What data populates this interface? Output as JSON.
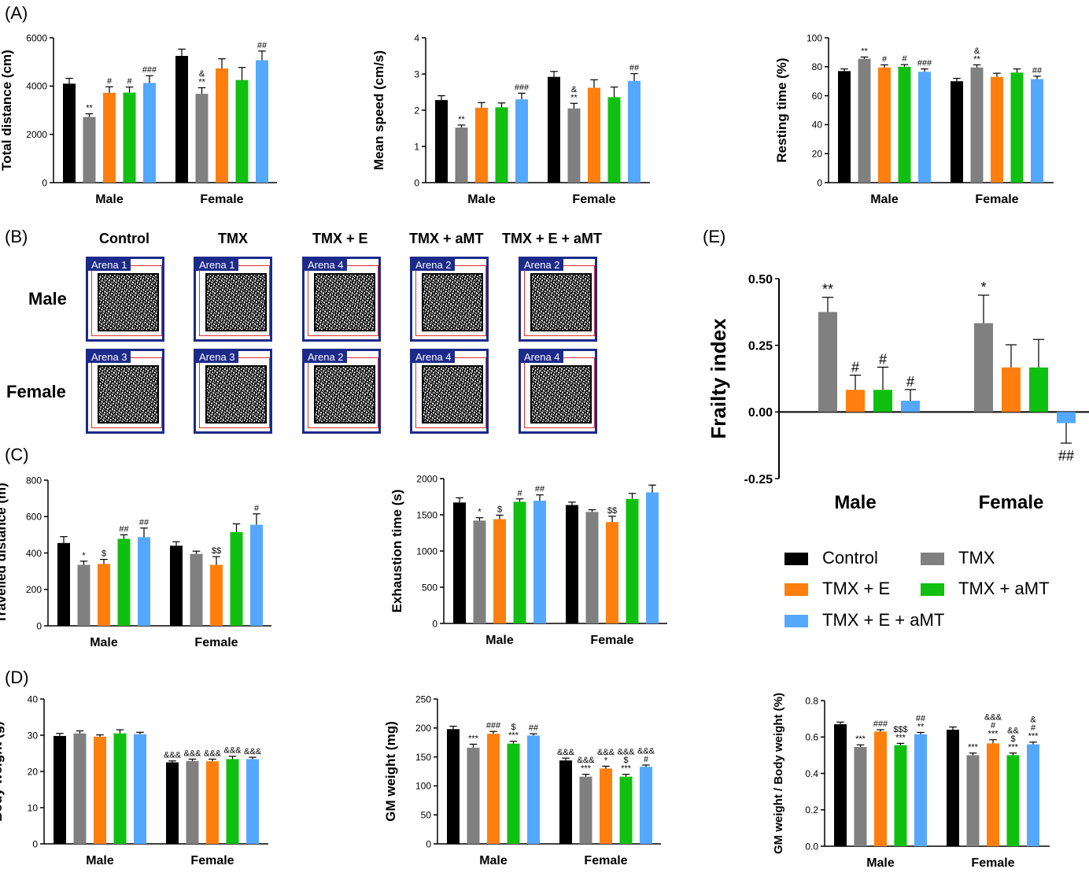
{
  "panel_labels": [
    "(A)",
    "(B)",
    "(C)",
    "(D)",
    "(E)"
  ],
  "colors": {
    "Control": "#000000",
    "TMX": "#808080",
    "TMX + E": "#ff7f0e",
    "TMX + aMT": "#10c010",
    "TMX + E + aMT": "#55a8ff"
  },
  "tracking": {
    "columns": [
      "Control",
      "TMX",
      "TMX + E",
      "TMX + aMT",
      "TMX + E + aMT"
    ],
    "rows": [
      "Male",
      "Female"
    ],
    "arena_labels": [
      [
        "Arena 1",
        "Arena 1",
        "Arena 4",
        "Arena 2",
        "Arena 2"
      ],
      [
        "Arena 3",
        "Arena 3",
        "Arena 2",
        "Arena 4",
        "Arena 4"
      ]
    ]
  },
  "legend": {
    "items": [
      "Control",
      "TMX",
      "TMX + E",
      "TMX + aMT",
      "TMX + E + aMT"
    ]
  },
  "chart_data": [
    {
      "id": "total-distance",
      "type": "bar",
      "ylabel": "Total distance (cm)",
      "ylim": [
        0,
        6000
      ],
      "yticks": [
        0,
        2000,
        4000,
        6000
      ],
      "categories": [
        "Male",
        "Female"
      ],
      "series": [
        {
          "name": "Control",
          "values": [
            4100,
            5250
          ],
          "errors": [
            220,
            280
          ],
          "annotations": [
            "",
            ""
          ]
        },
        {
          "name": "TMX",
          "values": [
            2720,
            3680
          ],
          "errors": [
            130,
            250
          ],
          "annotations": [
            "**",
            "&\n**"
          ]
        },
        {
          "name": "TMX + E",
          "values": [
            3720,
            4730
          ],
          "errors": [
            250,
            400
          ],
          "annotations": [
            "#",
            ""
          ]
        },
        {
          "name": "TMX + aMT",
          "values": [
            3730,
            4250
          ],
          "errors": [
            230,
            520
          ],
          "annotations": [
            "#",
            ""
          ]
        },
        {
          "name": "TMX + E + aMT",
          "values": [
            4130,
            5070
          ],
          "errors": [
            300,
            380
          ],
          "annotations": [
            "###",
            "##"
          ]
        }
      ]
    },
    {
      "id": "mean-speed",
      "type": "bar",
      "ylabel": "Mean speed (cm/s)",
      "ylim": [
        0,
        4
      ],
      "yticks": [
        0,
        1,
        2,
        3,
        4
      ],
      "categories": [
        "Male",
        "Female"
      ],
      "series": [
        {
          "name": "Control",
          "values": [
            2.28,
            2.92
          ],
          "errors": [
            0.12,
            0.15
          ],
          "annotations": [
            "",
            ""
          ]
        },
        {
          "name": "TMX",
          "values": [
            1.52,
            2.05
          ],
          "errors": [
            0.07,
            0.14
          ],
          "annotations": [
            "**",
            "&\n**"
          ]
        },
        {
          "name": "TMX + E",
          "values": [
            2.07,
            2.62
          ],
          "errors": [
            0.14,
            0.22
          ],
          "annotations": [
            "",
            ""
          ]
        },
        {
          "name": "TMX + aMT",
          "values": [
            2.08,
            2.36
          ],
          "errors": [
            0.12,
            0.28
          ],
          "annotations": [
            "",
            ""
          ]
        },
        {
          "name": "TMX + E + aMT",
          "values": [
            2.3,
            2.81
          ],
          "errors": [
            0.17,
            0.2
          ],
          "annotations": [
            "###",
            "##"
          ]
        }
      ]
    },
    {
      "id": "resting-time",
      "type": "bar",
      "ylabel": "Resting time (%)",
      "ylim": [
        0,
        100
      ],
      "yticks": [
        0,
        20,
        40,
        60,
        80,
        100
      ],
      "categories": [
        "Male",
        "Female"
      ],
      "series": [
        {
          "name": "Control",
          "values": [
            77,
            70
          ],
          "errors": [
            1.5,
            2
          ],
          "annotations": [
            "",
            ""
          ]
        },
        {
          "name": "TMX",
          "values": [
            85.5,
            79.5
          ],
          "errors": [
            1.2,
            1.8
          ],
          "annotations": [
            "**",
            "&\n**"
          ]
        },
        {
          "name": "TMX + E",
          "values": [
            79.5,
            73
          ],
          "errors": [
            1.8,
            2.5
          ],
          "annotations": [
            "#",
            ""
          ]
        },
        {
          "name": "TMX + aMT",
          "values": [
            80,
            76
          ],
          "errors": [
            1.5,
            2.5
          ],
          "annotations": [
            "#",
            ""
          ]
        },
        {
          "name": "TMX + E + aMT",
          "values": [
            76.5,
            71.5
          ],
          "errors": [
            2,
            2
          ],
          "annotations": [
            "###",
            "##"
          ]
        }
      ]
    },
    {
      "id": "travelled-distance",
      "type": "bar",
      "ylabel": "Travelled distance (m)",
      "ylim": [
        0,
        800
      ],
      "yticks": [
        0,
        200,
        400,
        600,
        800
      ],
      "categories": [
        "Male",
        "Female"
      ],
      "series": [
        {
          "name": "Control",
          "values": [
            455,
            440
          ],
          "errors": [
            35,
            22
          ],
          "annotations": [
            "",
            ""
          ]
        },
        {
          "name": "TMX",
          "values": [
            335,
            395
          ],
          "errors": [
            20,
            15
          ],
          "annotations": [
            "*",
            ""
          ]
        },
        {
          "name": "TMX + E",
          "values": [
            340,
            335
          ],
          "errors": [
            25,
            45
          ],
          "annotations": [
            "$",
            "$$"
          ]
        },
        {
          "name": "TMX + aMT",
          "values": [
            478,
            515
          ],
          "errors": [
            22,
            45
          ],
          "annotations": [
            "##",
            ""
          ]
        },
        {
          "name": "TMX + E + aMT",
          "values": [
            487,
            555
          ],
          "errors": [
            50,
            60
          ],
          "annotations": [
            "##",
            "#"
          ]
        }
      ]
    },
    {
      "id": "exhaustion-time",
      "type": "bar",
      "ylabel": "Exhaustion time (s)",
      "ylim": [
        0,
        2000
      ],
      "yticks": [
        0,
        500,
        1000,
        1500,
        2000
      ],
      "categories": [
        "Male",
        "Female"
      ],
      "series": [
        {
          "name": "Control",
          "values": [
            1670,
            1635
          ],
          "errors": [
            65,
            40
          ],
          "annotations": [
            "",
            ""
          ]
        },
        {
          "name": "TMX",
          "values": [
            1420,
            1540
          ],
          "errors": [
            40,
            30
          ],
          "annotations": [
            "*",
            ""
          ]
        },
        {
          "name": "TMX + E",
          "values": [
            1440,
            1400
          ],
          "errors": [
            55,
            80
          ],
          "annotations": [
            "$",
            "$$"
          ]
        },
        {
          "name": "TMX + aMT",
          "values": [
            1680,
            1720
          ],
          "errors": [
            40,
            75
          ],
          "annotations": [
            "#",
            ""
          ]
        },
        {
          "name": "TMX + E + aMT",
          "values": [
            1695,
            1810
          ],
          "errors": [
            80,
            100
          ],
          "annotations": [
            "##",
            ""
          ]
        }
      ]
    },
    {
      "id": "frailty-index",
      "type": "bar",
      "ylabel": "Frailty index",
      "ylim": [
        -0.25,
        0.5
      ],
      "yticks": [
        -0.25,
        0.0,
        0.25,
        0.5
      ],
      "categories": [
        "Male",
        "Female"
      ],
      "series": [
        {
          "name": "Control",
          "values": [
            0,
            0
          ],
          "errors": [
            0,
            0
          ],
          "annotations": [
            "",
            ""
          ]
        },
        {
          "name": "TMX",
          "values": [
            0.375,
            0.333
          ],
          "errors": [
            0.055,
            0.105
          ],
          "annotations": [
            "**",
            "*"
          ]
        },
        {
          "name": "TMX + E",
          "values": [
            0.083,
            0.167
          ],
          "errors": [
            0.055,
            0.085
          ],
          "annotations": [
            "#",
            ""
          ]
        },
        {
          "name": "TMX + aMT",
          "values": [
            0.083,
            0.167
          ],
          "errors": [
            0.085,
            0.105
          ],
          "annotations": [
            "#",
            ""
          ]
        },
        {
          "name": "TMX + E + aMT",
          "values": [
            0.042,
            -0.042
          ],
          "errors": [
            0.042,
            0.075
          ],
          "annotations": [
            "#",
            "##"
          ]
        }
      ]
    },
    {
      "id": "body-weight",
      "type": "bar",
      "ylabel": "Body weight (g)",
      "ylim": [
        0,
        40
      ],
      "yticks": [
        0,
        10,
        20,
        30,
        40
      ],
      "categories": [
        "Male",
        "Female"
      ],
      "series": [
        {
          "name": "Control",
          "values": [
            29.8,
            22.5
          ],
          "errors": [
            0.7,
            0.4
          ],
          "annotations": [
            "",
            "&&&"
          ]
        },
        {
          "name": "TMX",
          "values": [
            30.5,
            22.9
          ],
          "errors": [
            0.7,
            0.5
          ],
          "annotations": [
            "",
            "&&&"
          ]
        },
        {
          "name": "TMX + E",
          "values": [
            29.6,
            22.8
          ],
          "errors": [
            0.5,
            0.6
          ],
          "annotations": [
            "",
            "&&&"
          ]
        },
        {
          "name": "TMX + aMT",
          "values": [
            30.5,
            23.4
          ],
          "errors": [
            1.0,
            0.8
          ],
          "annotations": [
            "",
            "&&&"
          ]
        },
        {
          "name": "TMX + E + aMT",
          "values": [
            30.3,
            23.4
          ],
          "errors": [
            0.5,
            0.5
          ],
          "annotations": [
            "",
            "&&&"
          ]
        }
      ]
    },
    {
      "id": "gm-weight",
      "type": "bar",
      "ylabel": "GM weight (mg)",
      "ylim": [
        0,
        250
      ],
      "yticks": [
        0,
        50,
        100,
        150,
        200,
        250
      ],
      "categories": [
        "Male",
        "Female"
      ],
      "series": [
        {
          "name": "Control",
          "values": [
            198,
            144
          ],
          "errors": [
            5,
            4
          ],
          "annotations": [
            "",
            "&&&"
          ]
        },
        {
          "name": "TMX",
          "values": [
            166,
            116
          ],
          "errors": [
            6,
            4
          ],
          "annotations": [
            "***",
            "&&&\n***"
          ]
        },
        {
          "name": "TMX + E",
          "values": [
            190,
            130
          ],
          "errors": [
            4,
            4
          ],
          "annotations": [
            "###",
            "&&&\n*"
          ]
        },
        {
          "name": "TMX + aMT",
          "values": [
            173,
            116
          ],
          "errors": [
            4,
            4
          ],
          "annotations": [
            "$\n***",
            "&&&\n$\n***"
          ]
        },
        {
          "name": "TMX + E + aMT",
          "values": [
            187,
            133
          ],
          "errors": [
            3,
            3
          ],
          "annotations": [
            "##",
            "&&&\n#"
          ]
        }
      ]
    },
    {
      "id": "gm-ratio",
      "type": "bar",
      "ylabel": "GM weight / Body weight (%)",
      "ylim": [
        0,
        0.8
      ],
      "yticks": [
        0.0,
        0.2,
        0.4,
        0.6,
        0.8
      ],
      "categories": [
        "Male",
        "Female"
      ],
      "series": [
        {
          "name": "Control",
          "values": [
            0.67,
            0.64
          ],
          "errors": [
            0.012,
            0.015
          ],
          "annotations": [
            "",
            ""
          ]
        },
        {
          "name": "TMX",
          "values": [
            0.545,
            0.5
          ],
          "errors": [
            0.012,
            0.012
          ],
          "annotations": [
            "***",
            "***"
          ]
        },
        {
          "name": "TMX + E",
          "values": [
            0.63,
            0.565
          ],
          "errors": [
            0.01,
            0.02
          ],
          "annotations": [
            "###",
            "&&&\n#\n***"
          ]
        },
        {
          "name": "TMX + aMT",
          "values": [
            0.555,
            0.5
          ],
          "errors": [
            0.01,
            0.012
          ],
          "annotations": [
            "$$$\n***",
            "&&\n$\n***"
          ]
        },
        {
          "name": "TMX + E + aMT",
          "values": [
            0.615,
            0.56
          ],
          "errors": [
            0.01,
            0.012
          ],
          "annotations": [
            "##\n**",
            "&\n#\n***"
          ]
        }
      ]
    }
  ]
}
